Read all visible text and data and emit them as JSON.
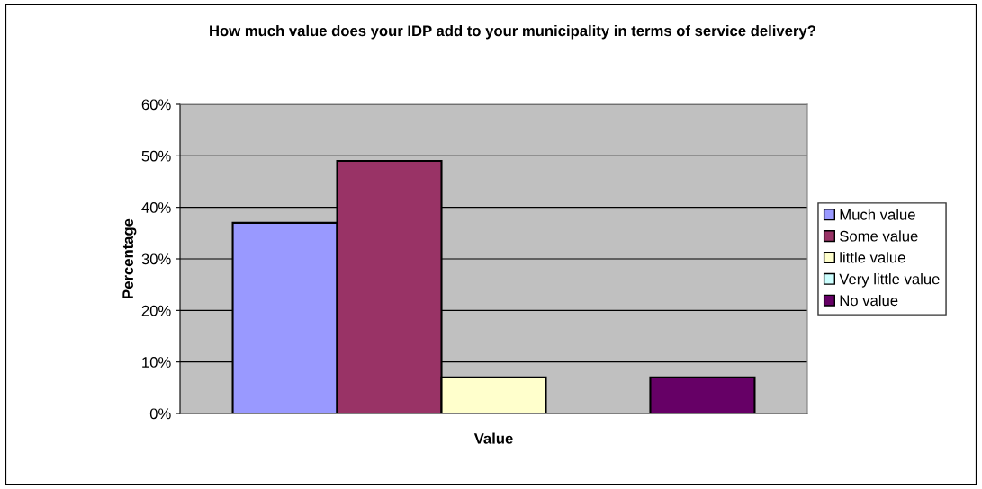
{
  "chart_data": {
    "type": "bar",
    "title": "How much value does your IDP add to your municipality in terms of service delivery?",
    "xlabel": "Value",
    "ylabel": "Percentage",
    "categories": [
      null
    ],
    "series": [
      {
        "name": "Much value",
        "color": "#9999ff",
        "values": [
          37
        ]
      },
      {
        "name": "Some value",
        "color": "#993366",
        "values": [
          49
        ]
      },
      {
        "name": "little value",
        "color": "#ffffcc",
        "values": [
          7
        ]
      },
      {
        "name": "Very little value",
        "color": "#ccffff",
        "values": [
          0
        ]
      },
      {
        "name": "No value",
        "color": "#660066",
        "values": [
          7
        ]
      }
    ],
    "ylim": [
      0,
      60
    ],
    "yticks": [
      {
        "value": 0,
        "label": "0%"
      },
      {
        "value": 10,
        "label": "10%"
      },
      {
        "value": 20,
        "label": "20%"
      },
      {
        "value": 30,
        "label": "30%"
      },
      {
        "value": 40,
        "label": "40%"
      },
      {
        "value": 50,
        "label": "50%"
      },
      {
        "value": 60,
        "label": "60%"
      }
    ],
    "grid": "y",
    "legend": "right"
  }
}
